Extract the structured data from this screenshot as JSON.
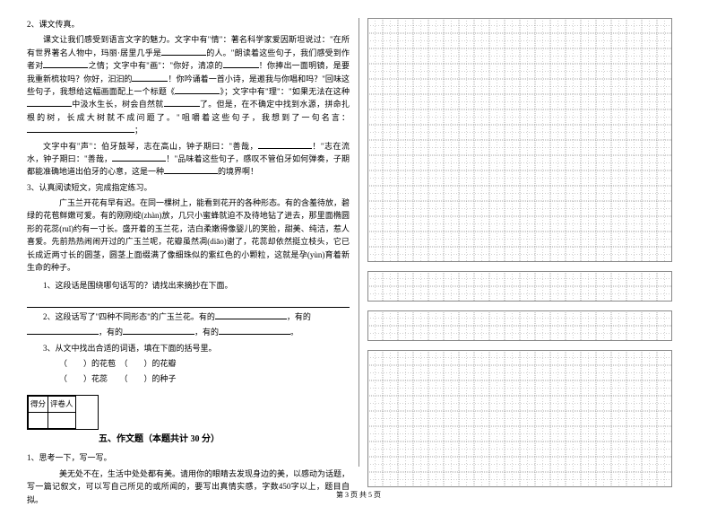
{
  "left": {
    "item2_num": "2、课文传真。",
    "p1": "课文让我们感受到语言文字的魅力。文字中有\"情\"：著名科学家爱因斯坦说过：\"在所有世界著名人物中，玛丽·居里几乎是",
    "p1b": "的人。\"朗读着这些句子，我们感受到作者对",
    "p1c": "之情；文字中有\"画\"：\"你好，清凉的",
    "p1d": "！你捧出一面明镜，是要我重新梳妆吗？你好，汩汩的",
    "p1e": "！你吟诵着一首小诗，是邀我与你唱和吗？\"回味这些句子，我想给这幅画面配上一个标题《",
    "p1f": "》；文字中有\"理\"：\"如果无法在这种",
    "p1g": "中汲水生长，树会自然就",
    "p1h": "了。但是，在不确定中找到水源，拼命扎根的树，长成大树就不成问题了。\"咀嚼着这些句子，我想到了一句名言：",
    "p1i": "；",
    "p2a": "文字中有\"声\"：伯牙鼓琴，志在高山，钟子期曰：\"善哉，",
    "p2b": "！\"志在流水，钟子期曰：\"善哉，",
    "p2c": "！\"品味着这些句子，感叹不管伯牙如何弹奏，子期都能准确地道出伯牙的心意，这是一种",
    "p2d": "的境界啊！",
    "item3_num": "3、认真阅读短文，完成指定练习。",
    "passage": "广玉兰开花有早有迟。在同一棵树上，能看到花开的各种形态。有的含羞待放，碧绿的花苞鲜嫩可爱。有的刚刚绽(zhàn)放，几只小蜜蜂就迫不及待地钻了进去，那里面椭圆形的花蕊(ruǐ)约有一寸长。盛开着的玉兰花，洁白柔嫩得像婴儿的笑脸，甜美、纯洁，惹人喜爱。先前热热闹闹开过的广玉兰呢，花瓣虽然凋(diāo)谢了，花蕊却依然挺立枝头，它已长成近两寸长的圆茎，圆茎上面缀满了像细珠似的紫红色的小颗粒，这就是孕(yùn)育着新生命的种子。",
    "q1": "1、这段话是围绕哪句话写的？请找出来摘抄在下面。",
    "q2a": "2、这段话写了\"四种不同形态\"的广玉兰花。有的",
    "q2b": "，有的",
    "q2c": "，有的",
    "q2d": "，有的",
    "q2e": "。",
    "q3": "3、从文中找出合适的词语，填在下面的括号里。",
    "q3a": "（　　）的花苞　（　　）的花瓣",
    "q3b": "（　　）花蕊　　（　　）的种子",
    "score_l": "得分",
    "score_r": "评卷人",
    "section5": "五、作文题（本题共计 30 分）",
    "essay_num": "1、思考一下，写一写。",
    "essay_prompt": "美无处不在，生活中处处都有美。请用你的眼睛去发现身边的美，以感动为话题，写一篇记叙文，可以写自己所见的或所闻的，要写出真情实感，字数450字以上，题目自拟。"
  },
  "footer": "第 3 页 共 5 页",
  "grid": {
    "cols": 20,
    "rows1": 16,
    "rows2": 2,
    "rows3": 2,
    "rows4": 9,
    "cell": 17,
    "stroke": "#888",
    "dash": "1,1"
  }
}
